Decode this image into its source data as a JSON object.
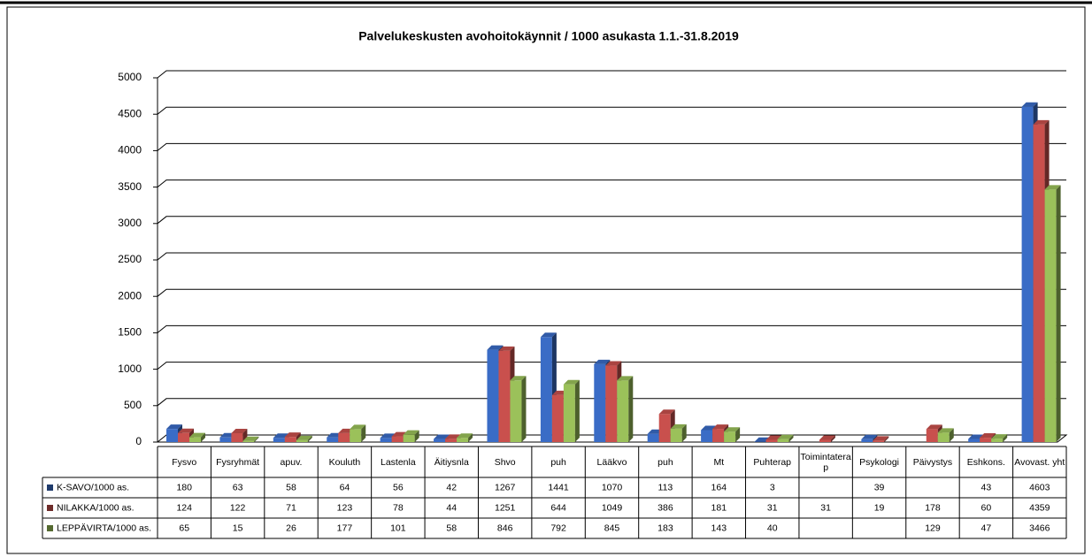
{
  "chart_data": {
    "type": "bar",
    "title": "Palvelukeskusten avohoitokäynnit / 1000 asukasta 1.1.-31.8.2019",
    "categories": [
      "Fysvo",
      "Fysryhmät",
      "apuv.",
      "Kouluth",
      "Lastenla",
      "Äitiysnla",
      "Shvo",
      "puh",
      "Lääkvo",
      "puh",
      "Mt",
      "Puhterap",
      "Toimintaterap",
      "Psykologi",
      "Päivystys",
      "Eshkons.",
      "Avovast. yht"
    ],
    "series": [
      {
        "name": "K-SAVO/1000 as.",
        "color": "#3a6cc6",
        "values": [
          180,
          63,
          58,
          64,
          56,
          42,
          1267,
          1441,
          1070,
          113,
          164,
          3,
          null,
          39,
          null,
          43,
          4603
        ]
      },
      {
        "name": "NILAKKA/1000 as.",
        "color": "#c9504d",
        "values": [
          124,
          122,
          71,
          123,
          78,
          44,
          1251,
          644,
          1049,
          386,
          181,
          31,
          31,
          19,
          178,
          60,
          4359
        ]
      },
      {
        "name": "LEPPÄVIRTA/1000 as.",
        "color": "#9bc15a",
        "values": [
          65,
          15,
          26,
          177,
          101,
          58,
          846,
          792,
          845,
          183,
          143,
          40,
          null,
          null,
          129,
          47,
          3466
        ]
      }
    ],
    "ylim": [
      0,
      5000
    ],
    "yticks": [
      0,
      500,
      1000,
      1500,
      2000,
      2500,
      3000,
      3500,
      4000,
      4500,
      5000
    ],
    "grid": true
  }
}
